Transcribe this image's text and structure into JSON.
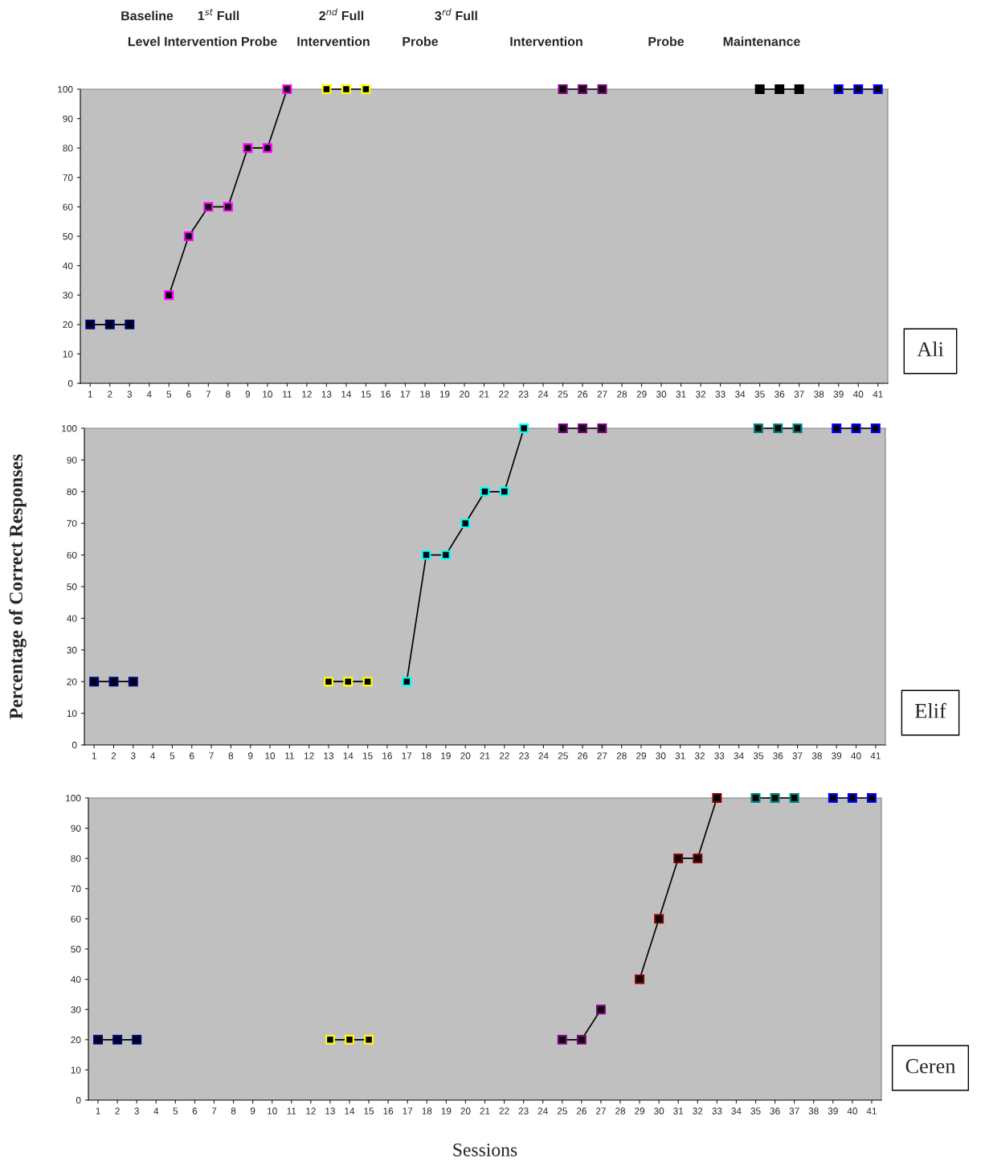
{
  "chart_data": [
    {
      "type": "line",
      "categories": [
        "1",
        "2",
        "3",
        "4",
        "5",
        "6",
        "7",
        "8",
        "9",
        "10",
        "11",
        "12",
        "13",
        "14",
        "15",
        "16",
        "17",
        "18",
        "19",
        "20",
        "21",
        "22",
        "23",
        "24",
        "25",
        "26",
        "27",
        "28",
        "29",
        "30",
        "31",
        "32",
        "33",
        "34",
        "35",
        "36",
        "37",
        "38",
        "39",
        "40",
        "41"
      ],
      "ylim": [
        0,
        100
      ],
      "yticks": [
        0,
        10,
        20,
        30,
        40,
        50,
        60,
        70,
        80,
        90,
        100
      ],
      "marker": "square",
      "line_style": "solid",
      "grid": false,
      "annotations": [
        "Baseline",
        "1$^{st}$ Full",
        "2$^{nd}$ Full",
        "3$^{rd}$ Full",
        "Level Intervention Probe",
        "Intervention",
        "Probe",
        "Intervention",
        "Probe",
        "Maintenance",
        "Ali"
      ],
      "series": [
        {
          "color": "#000080",
          "values": [
            20,
            20,
            20,
            null,
            null,
            null,
            null,
            null,
            null,
            null,
            null,
            null,
            null,
            null,
            null,
            null,
            null,
            null,
            null,
            null,
            null,
            null,
            null,
            null,
            null,
            null,
            null,
            null,
            null,
            null,
            null,
            null,
            null,
            null,
            null,
            null,
            null,
            null,
            null,
            null,
            null
          ]
        },
        {
          "color": "#ff00ff",
          "values": [
            null,
            null,
            null,
            null,
            30,
            50,
            60,
            60,
            80,
            80,
            100,
            null,
            null,
            null,
            null,
            null,
            null,
            null,
            null,
            null,
            null,
            null,
            null,
            null,
            null,
            null,
            null,
            null,
            null,
            null,
            null,
            null,
            null,
            null,
            null,
            null,
            null,
            null,
            null,
            null,
            null
          ]
        },
        {
          "color": "#ffff00",
          "values": [
            null,
            null,
            null,
            null,
            null,
            null,
            null,
            null,
            null,
            null,
            null,
            null,
            100,
            100,
            100,
            null,
            null,
            null,
            null,
            null,
            null,
            null,
            null,
            null,
            null,
            null,
            null,
            null,
            null,
            null,
            null,
            null,
            null,
            null,
            null,
            null,
            null,
            null,
            null,
            null,
            null
          ]
        },
        {
          "color": "#800080",
          "values": [
            null,
            null,
            null,
            null,
            null,
            null,
            null,
            null,
            null,
            null,
            null,
            null,
            null,
            null,
            null,
            null,
            null,
            null,
            null,
            null,
            null,
            null,
            null,
            null,
            100,
            100,
            100,
            null,
            null,
            null,
            null,
            null,
            null,
            null,
            null,
            null,
            null,
            null,
            null,
            null,
            null
          ]
        },
        {
          "color": "#000000",
          "values": [
            null,
            null,
            null,
            null,
            null,
            null,
            null,
            null,
            null,
            null,
            null,
            null,
            null,
            null,
            null,
            null,
            null,
            null,
            null,
            null,
            null,
            null,
            null,
            null,
            null,
            null,
            null,
            null,
            null,
            null,
            null,
            null,
            null,
            null,
            100,
            100,
            100,
            null,
            null,
            null,
            null
          ]
        },
        {
          "color": "#0000ff",
          "values": [
            null,
            null,
            null,
            null,
            null,
            null,
            null,
            null,
            null,
            null,
            null,
            null,
            null,
            null,
            null,
            null,
            null,
            null,
            null,
            null,
            null,
            null,
            null,
            null,
            null,
            null,
            null,
            null,
            null,
            null,
            null,
            null,
            null,
            null,
            null,
            null,
            null,
            null,
            100,
            100,
            100
          ]
        }
      ]
    },
    {
      "type": "line",
      "categories": [
        "1",
        "2",
        "3",
        "4",
        "5",
        "6",
        "7",
        "8",
        "9",
        "10",
        "11",
        "12",
        "13",
        "14",
        "15",
        "16",
        "17",
        "18",
        "19",
        "20",
        "21",
        "22",
        "23",
        "24",
        "25",
        "26",
        "27",
        "28",
        "29",
        "30",
        "31",
        "32",
        "33",
        "34",
        "35",
        "36",
        "37",
        "38",
        "39",
        "40",
        "41"
      ],
      "ylim": [
        0,
        100
      ],
      "yticks": [
        0,
        10,
        20,
        30,
        40,
        50,
        60,
        70,
        80,
        90,
        100
      ],
      "marker": "square",
      "line_style": "solid",
      "grid": false,
      "ylabel": "Percentage of Correct Responses",
      "annotations": [
        "Elif"
      ],
      "series": [
        {
          "color": "#000080",
          "values": [
            20,
            20,
            20,
            null,
            null,
            null,
            null,
            null,
            null,
            null,
            null,
            null,
            null,
            null,
            null,
            null,
            null,
            null,
            null,
            null,
            null,
            null,
            null,
            null,
            null,
            null,
            null,
            null,
            null,
            null,
            null,
            null,
            null,
            null,
            null,
            null,
            null,
            null,
            null,
            null,
            null
          ]
        },
        {
          "color": "#ffff00",
          "values": [
            null,
            null,
            null,
            null,
            null,
            null,
            null,
            null,
            null,
            null,
            null,
            null,
            20,
            20,
            20,
            null,
            null,
            null,
            null,
            null,
            null,
            null,
            null,
            null,
            null,
            null,
            null,
            null,
            null,
            null,
            null,
            null,
            null,
            null,
            null,
            null,
            null,
            null,
            null,
            null,
            null
          ]
        },
        {
          "color": "#00ffff",
          "values": [
            null,
            null,
            null,
            null,
            null,
            null,
            null,
            null,
            null,
            null,
            null,
            null,
            null,
            null,
            null,
            null,
            20,
            60,
            60,
            70,
            80,
            80,
            100,
            null,
            null,
            null,
            null,
            null,
            null,
            null,
            null,
            null,
            null,
            null,
            null,
            null,
            null,
            null,
            null,
            null,
            null
          ]
        },
        {
          "color": "#800080",
          "values": [
            null,
            null,
            null,
            null,
            null,
            null,
            null,
            null,
            null,
            null,
            null,
            null,
            null,
            null,
            null,
            null,
            null,
            null,
            null,
            null,
            null,
            null,
            null,
            null,
            100,
            100,
            100,
            null,
            null,
            null,
            null,
            null,
            null,
            null,
            null,
            null,
            null,
            null,
            null,
            null,
            null
          ]
        },
        {
          "color": "#008080",
          "values": [
            null,
            null,
            null,
            null,
            null,
            null,
            null,
            null,
            null,
            null,
            null,
            null,
            null,
            null,
            null,
            null,
            null,
            null,
            null,
            null,
            null,
            null,
            null,
            null,
            null,
            null,
            null,
            null,
            null,
            null,
            null,
            null,
            null,
            null,
            100,
            100,
            100,
            null,
            null,
            null,
            null
          ]
        },
        {
          "color": "#0000ff",
          "values": [
            null,
            null,
            null,
            null,
            null,
            null,
            null,
            null,
            null,
            null,
            null,
            null,
            null,
            null,
            null,
            null,
            null,
            null,
            null,
            null,
            null,
            null,
            null,
            null,
            null,
            null,
            null,
            null,
            null,
            null,
            null,
            null,
            null,
            null,
            null,
            null,
            null,
            null,
            100,
            100,
            100
          ]
        }
      ]
    },
    {
      "type": "line",
      "categories": [
        "1",
        "2",
        "3",
        "4",
        "5",
        "6",
        "7",
        "8",
        "9",
        "10",
        "11",
        "12",
        "13",
        "14",
        "15",
        "16",
        "17",
        "18",
        "19",
        "20",
        "21",
        "22",
        "23",
        "24",
        "25",
        "26",
        "27",
        "28",
        "29",
        "30",
        "31",
        "32",
        "33",
        "34",
        "35",
        "36",
        "37",
        "38",
        "39",
        "40",
        "41"
      ],
      "ylim": [
        0,
        100
      ],
      "yticks": [
        0,
        10,
        20,
        30,
        40,
        50,
        60,
        70,
        80,
        90,
        100
      ],
      "marker": "square",
      "line_style": "solid",
      "grid": false,
      "xlabel": "Sessions",
      "annotations": [
        "Ceren"
      ],
      "series": [
        {
          "color": "#000080",
          "values": [
            20,
            20,
            20,
            null,
            null,
            null,
            null,
            null,
            null,
            null,
            null,
            null,
            null,
            null,
            null,
            null,
            null,
            null,
            null,
            null,
            null,
            null,
            null,
            null,
            null,
            null,
            null,
            null,
            null,
            null,
            null,
            null,
            null,
            null,
            null,
            null,
            null,
            null,
            null,
            null,
            null
          ]
        },
        {
          "color": "#ffff00",
          "values": [
            null,
            null,
            null,
            null,
            null,
            null,
            null,
            null,
            null,
            null,
            null,
            null,
            20,
            20,
            20,
            null,
            null,
            null,
            null,
            null,
            null,
            null,
            null,
            null,
            null,
            null,
            null,
            null,
            null,
            null,
            null,
            null,
            null,
            null,
            null,
            null,
            null,
            null,
            null,
            null,
            null
          ]
        },
        {
          "color": "#800080",
          "values": [
            null,
            null,
            null,
            null,
            null,
            null,
            null,
            null,
            null,
            null,
            null,
            null,
            null,
            null,
            null,
            null,
            null,
            null,
            null,
            null,
            null,
            null,
            null,
            null,
            20,
            20,
            30,
            null,
            null,
            null,
            null,
            null,
            null,
            null,
            null,
            null,
            null,
            null,
            null,
            null,
            null
          ]
        },
        {
          "color": "#800000",
          "values": [
            null,
            null,
            null,
            null,
            null,
            null,
            null,
            null,
            null,
            null,
            null,
            null,
            null,
            null,
            null,
            null,
            null,
            null,
            null,
            null,
            null,
            null,
            null,
            null,
            null,
            null,
            null,
            null,
            40,
            60,
            80,
            80,
            100,
            null,
            null,
            null,
            null,
            null,
            null,
            null,
            null
          ]
        },
        {
          "color": "#008080",
          "values": [
            null,
            null,
            null,
            null,
            null,
            null,
            null,
            null,
            null,
            null,
            null,
            null,
            null,
            null,
            null,
            null,
            null,
            null,
            null,
            null,
            null,
            null,
            null,
            null,
            null,
            null,
            null,
            null,
            null,
            null,
            null,
            null,
            null,
            null,
            100,
            100,
            100,
            null,
            null,
            null,
            null
          ]
        },
        {
          "color": "#0000ff",
          "values": [
            null,
            null,
            null,
            null,
            null,
            null,
            null,
            null,
            null,
            null,
            null,
            null,
            null,
            null,
            null,
            null,
            null,
            null,
            null,
            null,
            null,
            null,
            null,
            null,
            null,
            null,
            null,
            null,
            null,
            null,
            null,
            null,
            null,
            null,
            null,
            null,
            null,
            null,
            100,
            100,
            100
          ]
        }
      ]
    }
  ]
}
